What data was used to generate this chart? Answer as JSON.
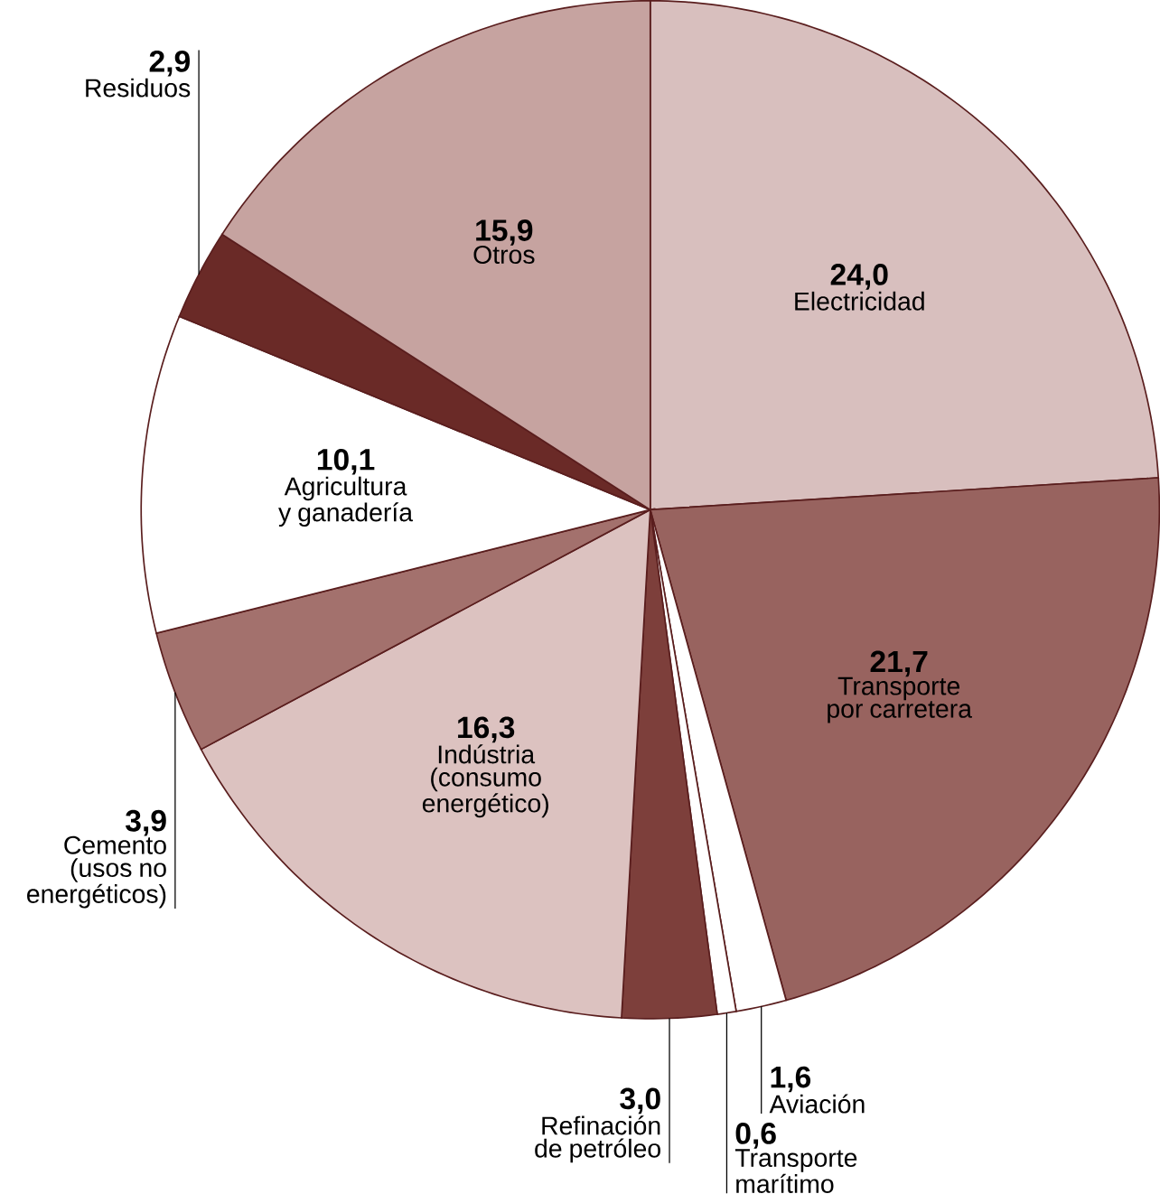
{
  "chart_data": {
    "type": "pie",
    "categories": [
      "Electricidad",
      "Transporte por carretera",
      "Aviación",
      "Transporte marítimo",
      "Refinación de petróleo",
      "Indústria (consumo energético)",
      "Cemento (usos no energéticos)",
      "Agricultura y ganadería",
      "Residuos",
      "Otros"
    ],
    "values": [
      24.0,
      21.7,
      1.6,
      0.6,
      3.0,
      16.3,
      3.9,
      10.1,
      2.9,
      15.9
    ],
    "value_labels": [
      "24,0",
      "21,7",
      "1,6",
      "0,6",
      "3,0",
      "16,3",
      "3,9",
      "10,1",
      "2,9",
      "15,9"
    ],
    "colors": [
      "#d8bfbe",
      "#98635f",
      "#ffffff",
      "#ffffff",
      "#7d3f3b",
      "#dcc2c0",
      "#a3716d",
      "#ffffff",
      "#6a2a27",
      "#c6a3a0"
    ]
  }
}
